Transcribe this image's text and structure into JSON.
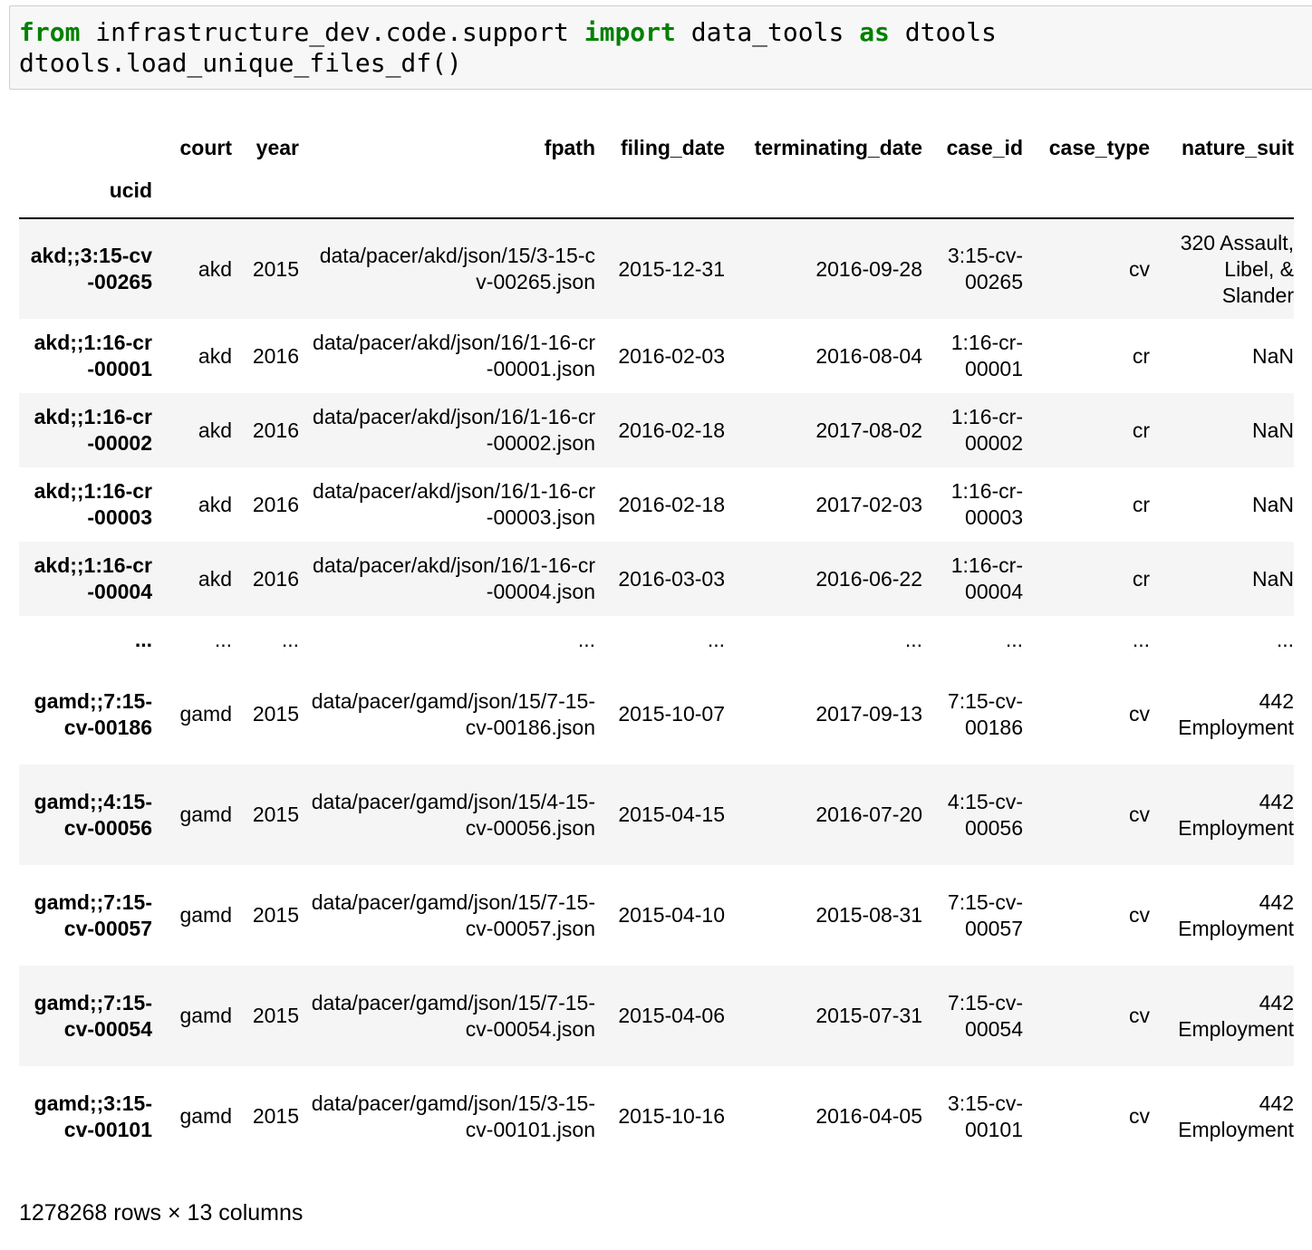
{
  "code": {
    "line1": {
      "kw_from": "from",
      "module": " infrastructure_dev.code.support ",
      "kw_import": "import",
      "name": " data_tools ",
      "kw_as": "as",
      "alias": " dtools"
    },
    "line2": "dtools.load_unique_files_df()"
  },
  "table": {
    "index_name": "ucid",
    "columns": [
      "court",
      "year",
      "fpath",
      "filing_date",
      "terminating_date",
      "case_id",
      "case_type",
      "nature_suit"
    ],
    "rows": [
      {
        "ucid": "akd;;3:15-cv-00265",
        "court": "akd",
        "year": "2015",
        "fpath": "data/pacer/akd/json/15/3-15-cv-00265.json",
        "filing_date": "2015-12-31",
        "terminating_date": "2016-09-28",
        "case_id": "3:15-cv-00265",
        "case_type": "cv",
        "nature_suit": "320 Assault, Libel, & Slander"
      },
      {
        "ucid": "akd;;1:16-cr-00001",
        "court": "akd",
        "year": "2016",
        "fpath": "data/pacer/akd/json/16/1-16-cr-00001.json",
        "filing_date": "2016-02-03",
        "terminating_date": "2016-08-04",
        "case_id": "1:16-cr-00001",
        "case_type": "cr",
        "nature_suit": "NaN"
      },
      {
        "ucid": "akd;;1:16-cr-00002",
        "court": "akd",
        "year": "2016",
        "fpath": "data/pacer/akd/json/16/1-16-cr-00002.json",
        "filing_date": "2016-02-18",
        "terminating_date": "2017-08-02",
        "case_id": "1:16-cr-00002",
        "case_type": "cr",
        "nature_suit": "NaN"
      },
      {
        "ucid": "akd;;1:16-cr-00003",
        "court": "akd",
        "year": "2016",
        "fpath": "data/pacer/akd/json/16/1-16-cr-00003.json",
        "filing_date": "2016-02-18",
        "terminating_date": "2017-02-03",
        "case_id": "1:16-cr-00003",
        "case_type": "cr",
        "nature_suit": "NaN"
      },
      {
        "ucid": "akd;;1:16-cr-00004",
        "court": "akd",
        "year": "2016",
        "fpath": "data/pacer/akd/json/16/1-16-cr-00004.json",
        "filing_date": "2016-03-03",
        "terminating_date": "2016-06-22",
        "case_id": "1:16-cr-00004",
        "case_type": "cr",
        "nature_suit": "NaN"
      },
      {
        "ellipsis": true,
        "ucid": "...",
        "court": "...",
        "year": "...",
        "fpath": "...",
        "filing_date": "...",
        "terminating_date": "...",
        "case_id": "...",
        "case_type": "...",
        "nature_suit": "..."
      },
      {
        "ucid": "gamd;;7:15-cv-00186",
        "court": "gamd",
        "year": "2015",
        "fpath": "data/pacer/gamd/json/15/7-15-cv-00186.json",
        "filing_date": "2015-10-07",
        "terminating_date": "2017-09-13",
        "case_id": "7:15-cv-00186",
        "case_type": "cv",
        "nature_suit": "442 Employment"
      },
      {
        "ucid": "gamd;;4:15-cv-00056",
        "court": "gamd",
        "year": "2015",
        "fpath": "data/pacer/gamd/json/15/4-15-cv-00056.json",
        "filing_date": "2015-04-15",
        "terminating_date": "2016-07-20",
        "case_id": "4:15-cv-00056",
        "case_type": "cv",
        "nature_suit": "442 Employment"
      },
      {
        "ucid": "gamd;;7:15-cv-00057",
        "court": "gamd",
        "year": "2015",
        "fpath": "data/pacer/gamd/json/15/7-15-cv-00057.json",
        "filing_date": "2015-04-10",
        "terminating_date": "2015-08-31",
        "case_id": "7:15-cv-00057",
        "case_type": "cv",
        "nature_suit": "442 Employment"
      },
      {
        "ucid": "gamd;;7:15-cv-00054",
        "court": "gamd",
        "year": "2015",
        "fpath": "data/pacer/gamd/json/15/7-15-cv-00054.json",
        "filing_date": "2015-04-06",
        "terminating_date": "2015-07-31",
        "case_id": "7:15-cv-00054",
        "case_type": "cv",
        "nature_suit": "442 Employment"
      },
      {
        "ucid": "gamd;;3:15-cv-00101",
        "court": "gamd",
        "year": "2015",
        "fpath": "data/pacer/gamd/json/15/3-15-cv-00101.json",
        "filing_date": "2015-10-16",
        "terminating_date": "2016-04-05",
        "case_id": "3:15-cv-00101",
        "case_type": "cv",
        "nature_suit": "442 Employment"
      }
    ],
    "footer": "1278268 rows × 13 columns"
  }
}
